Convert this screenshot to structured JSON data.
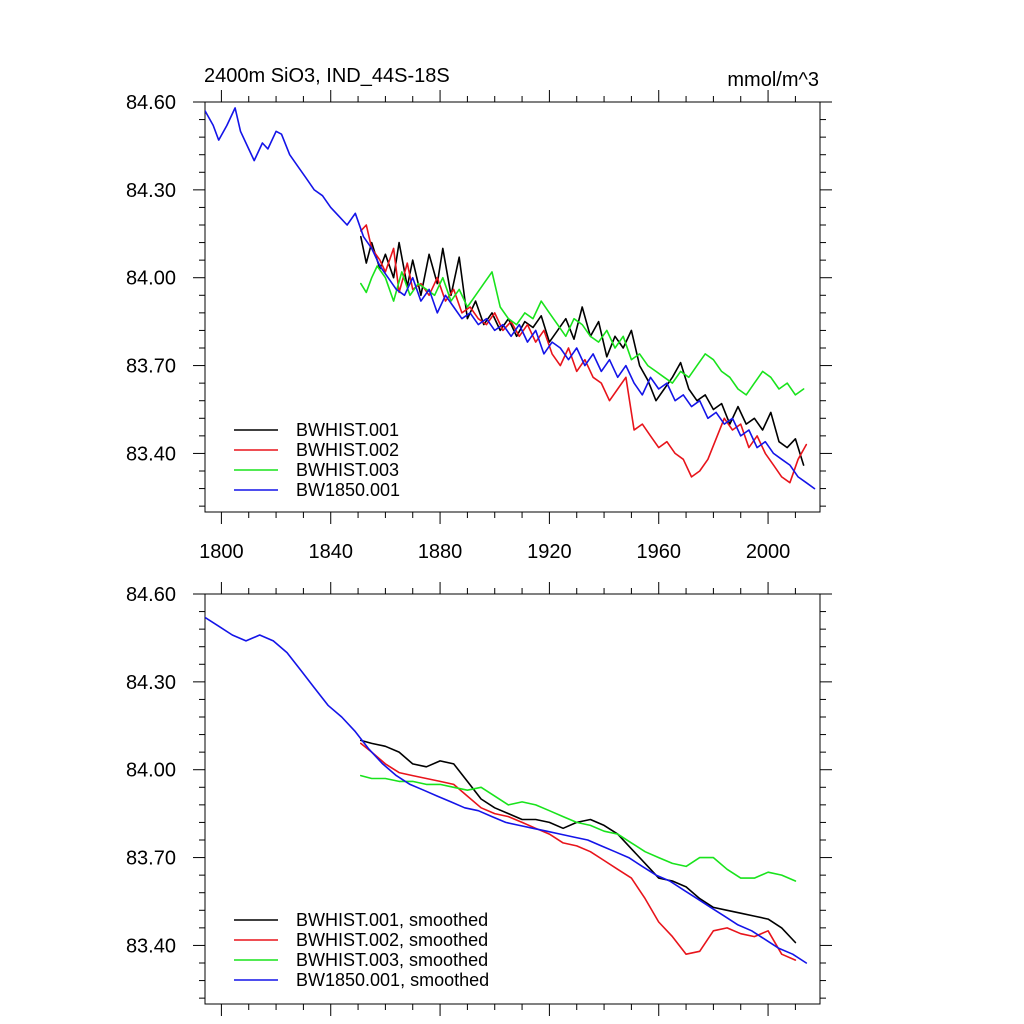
{
  "header": {
    "title": "2400m SiO3, IND_44S-18S",
    "units": "mmol/m^3"
  },
  "colors": {
    "BWHIST.001": "#000000",
    "BWHIST.002": "#e8141b",
    "BWHIST.003": "#19e31c",
    "BW1850.001": "#1414e8"
  },
  "chart_data": [
    {
      "type": "line",
      "title": "2400m SiO3, IND_44S-18S",
      "units": "mmol/m^3",
      "xlim": [
        1794,
        2019
      ],
      "ylim": [
        83.2,
        84.6
      ],
      "x_ticks": [
        1800,
        1840,
        1880,
        1920,
        1960,
        2000
      ],
      "x_tick_labels": [
        "1800",
        "1840",
        "1880",
        "1920",
        "1960",
        "2000"
      ],
      "y_ticks": [
        84.6,
        84.3,
        84.0,
        83.7,
        83.4
      ],
      "y_tick_labels": [
        "84.60",
        "84.30",
        "84.00",
        "83.70",
        "83.40"
      ],
      "legend_position": "bottom-left",
      "grid": false,
      "series": [
        {
          "name": "BWHIST.001",
          "x": [
            1851,
            1853,
            1855,
            1858,
            1860,
            1863,
            1865,
            1868,
            1870,
            1873,
            1876,
            1879,
            1881,
            1884,
            1887,
            1890,
            1893,
            1896,
            1899,
            1902,
            1905,
            1908,
            1911,
            1914,
            1917,
            1920,
            1923,
            1926,
            1929,
            1932,
            1935,
            1938,
            1941,
            1944,
            1947,
            1950,
            1953,
            1956,
            1959,
            1962,
            1965,
            1968,
            1971,
            1974,
            1977,
            1980,
            1983,
            1986,
            1989,
            1992,
            1995,
            1998,
            2001,
            2004,
            2007,
            2010,
            2013
          ],
          "y": [
            84.14,
            84.05,
            84.12,
            84.03,
            84.08,
            84.0,
            84.12,
            83.97,
            84.06,
            83.94,
            84.08,
            83.98,
            84.1,
            83.94,
            84.07,
            83.86,
            83.92,
            83.84,
            83.88,
            83.82,
            83.86,
            83.8,
            83.85,
            83.83,
            83.87,
            83.78,
            83.82,
            83.86,
            83.79,
            83.9,
            83.8,
            83.85,
            83.73,
            83.8,
            83.76,
            83.82,
            83.7,
            83.65,
            83.58,
            83.62,
            83.66,
            83.71,
            83.62,
            83.58,
            83.6,
            83.55,
            83.57,
            83.5,
            83.56,
            83.5,
            83.52,
            83.48,
            83.54,
            83.44,
            83.42,
            83.45,
            83.36
          ]
        },
        {
          "name": "BWHIST.002",
          "x": [
            1851,
            1853,
            1855,
            1858,
            1860,
            1863,
            1865,
            1868,
            1870,
            1873,
            1876,
            1879,
            1882,
            1885,
            1888,
            1891,
            1894,
            1897,
            1900,
            1903,
            1906,
            1909,
            1912,
            1915,
            1918,
            1921,
            1924,
            1927,
            1930,
            1933,
            1936,
            1939,
            1942,
            1945,
            1948,
            1951,
            1954,
            1957,
            1960,
            1963,
            1966,
            1969,
            1972,
            1975,
            1978,
            1981,
            1984,
            1987,
            1990,
            1993,
            1996,
            1999,
            2002,
            2005,
            2008,
            2011,
            2014
          ],
          "y": [
            84.16,
            84.18,
            84.1,
            84.06,
            84.02,
            84.1,
            83.95,
            84.05,
            83.96,
            83.98,
            83.94,
            84.0,
            83.92,
            83.96,
            83.88,
            83.9,
            83.86,
            83.84,
            83.88,
            83.82,
            83.85,
            83.8,
            83.84,
            83.78,
            83.82,
            83.74,
            83.7,
            83.76,
            83.68,
            83.72,
            83.66,
            83.64,
            83.58,
            83.62,
            83.66,
            83.48,
            83.5,
            83.46,
            83.42,
            83.44,
            83.4,
            83.38,
            83.32,
            83.34,
            83.38,
            83.45,
            83.52,
            83.48,
            83.5,
            83.42,
            83.46,
            83.4,
            83.36,
            83.32,
            83.3,
            83.38,
            83.43
          ]
        },
        {
          "name": "BWHIST.003",
          "x": [
            1851,
            1853,
            1855,
            1857,
            1860,
            1863,
            1866,
            1869,
            1872,
            1875,
            1878,
            1881,
            1884,
            1887,
            1890,
            1893,
            1896,
            1899,
            1902,
            1905,
            1908,
            1911,
            1914,
            1917,
            1920,
            1923,
            1926,
            1929,
            1932,
            1935,
            1938,
            1941,
            1944,
            1947,
            1950,
            1953,
            1956,
            1959,
            1962,
            1965,
            1968,
            1971,
            1974,
            1977,
            1980,
            1983,
            1986,
            1989,
            1992,
            1995,
            1998,
            2001,
            2004,
            2007,
            2010,
            2013
          ],
          "y": [
            83.98,
            83.95,
            84.0,
            84.04,
            84.0,
            83.92,
            84.02,
            83.94,
            83.98,
            83.96,
            83.94,
            84.0,
            83.92,
            83.96,
            83.9,
            83.94,
            83.98,
            84.02,
            83.9,
            83.86,
            83.84,
            83.88,
            83.86,
            83.92,
            83.88,
            83.84,
            83.8,
            83.86,
            83.84,
            83.8,
            83.78,
            83.82,
            83.76,
            83.8,
            83.72,
            83.74,
            83.7,
            83.68,
            83.66,
            83.64,
            83.68,
            83.66,
            83.7,
            83.74,
            83.72,
            83.68,
            83.66,
            83.62,
            83.6,
            83.64,
            83.68,
            83.66,
            83.62,
            83.64,
            83.6,
            83.62
          ]
        },
        {
          "name": "BW1850.001",
          "x": [
            1794,
            1797,
            1799,
            1802,
            1805,
            1807,
            1810,
            1812,
            1815,
            1817,
            1820,
            1822,
            1825,
            1828,
            1831,
            1834,
            1837,
            1840,
            1843,
            1846,
            1849,
            1852,
            1855,
            1858,
            1861,
            1864,
            1867,
            1870,
            1873,
            1876,
            1879,
            1882,
            1885,
            1888,
            1891,
            1894,
            1897,
            1900,
            1903,
            1906,
            1909,
            1912,
            1915,
            1918,
            1921,
            1924,
            1927,
            1930,
            1933,
            1936,
            1939,
            1942,
            1945,
            1948,
            1951,
            1954,
            1957,
            1960,
            1963,
            1966,
            1969,
            1972,
            1975,
            1978,
            1981,
            1984,
            1987,
            1990,
            1993,
            1996,
            1999,
            2002,
            2005,
            2008,
            2011,
            2014,
            2017
          ],
          "y": [
            84.57,
            84.52,
            84.47,
            84.52,
            84.58,
            84.5,
            84.44,
            84.4,
            84.46,
            84.44,
            84.5,
            84.49,
            84.42,
            84.38,
            84.34,
            84.3,
            84.28,
            84.24,
            84.21,
            84.18,
            84.22,
            84.14,
            84.1,
            84.04,
            84.0,
            83.96,
            83.94,
            84.0,
            83.92,
            83.96,
            83.88,
            83.94,
            83.9,
            83.86,
            83.88,
            83.84,
            83.86,
            83.82,
            83.84,
            83.8,
            83.84,
            83.78,
            83.82,
            83.74,
            83.78,
            83.76,
            83.72,
            83.76,
            83.7,
            83.74,
            83.68,
            83.72,
            83.66,
            83.7,
            83.64,
            83.6,
            83.66,
            83.62,
            83.64,
            83.58,
            83.6,
            83.56,
            83.58,
            83.52,
            83.54,
            83.5,
            83.52,
            83.46,
            83.48,
            83.42,
            83.44,
            83.4,
            83.38,
            83.36,
            83.32,
            83.3,
            83.28
          ]
        }
      ]
    },
    {
      "type": "line",
      "xlim": [
        1794,
        2019
      ],
      "ylim": [
        83.2,
        84.6
      ],
      "x_ticks": [
        1800,
        1840,
        1880,
        1920,
        1960,
        2000
      ],
      "y_ticks": [
        84.6,
        84.3,
        84.0,
        83.7,
        83.4
      ],
      "y_tick_labels": [
        "84.60",
        "84.30",
        "84.00",
        "83.70",
        "83.40"
      ],
      "legend_position": "bottom-left",
      "grid": false,
      "series": [
        {
          "name": "BWHIST.001, smoothed",
          "key": "BWHIST.001",
          "x": [
            1851,
            1855,
            1860,
            1865,
            1870,
            1875,
            1880,
            1885,
            1890,
            1895,
            1900,
            1905,
            1910,
            1915,
            1920,
            1925,
            1930,
            1935,
            1940,
            1945,
            1950,
            1955,
            1960,
            1965,
            1970,
            1975,
            1980,
            1985,
            1990,
            1995,
            2000,
            2005,
            2010
          ],
          "y": [
            84.1,
            84.09,
            84.08,
            84.06,
            84.02,
            84.01,
            84.03,
            84.02,
            83.96,
            83.9,
            83.87,
            83.85,
            83.83,
            83.83,
            83.82,
            83.8,
            83.82,
            83.83,
            83.81,
            83.78,
            83.73,
            83.68,
            83.63,
            83.62,
            83.6,
            83.56,
            83.53,
            83.52,
            83.51,
            83.5,
            83.49,
            83.46,
            83.41
          ]
        },
        {
          "name": "BWHIST.002, smoothed",
          "key": "BWHIST.002",
          "x": [
            1851,
            1855,
            1860,
            1865,
            1870,
            1875,
            1880,
            1885,
            1890,
            1895,
            1900,
            1905,
            1910,
            1915,
            1920,
            1925,
            1930,
            1935,
            1940,
            1945,
            1950,
            1955,
            1960,
            1965,
            1970,
            1975,
            1980,
            1985,
            1990,
            1995,
            2000,
            2005,
            2010
          ],
          "y": [
            84.09,
            84.06,
            84.02,
            83.99,
            83.98,
            83.97,
            83.96,
            83.95,
            83.91,
            83.87,
            83.85,
            83.84,
            83.82,
            83.8,
            83.78,
            83.75,
            83.74,
            83.72,
            83.69,
            83.66,
            83.63,
            83.56,
            83.48,
            83.43,
            83.37,
            83.38,
            83.45,
            83.46,
            83.44,
            83.43,
            83.45,
            83.37,
            83.35
          ]
        },
        {
          "name": "BWHIST.003, smoothed",
          "key": "BWHIST.003",
          "x": [
            1851,
            1855,
            1860,
            1865,
            1870,
            1875,
            1880,
            1885,
            1890,
            1895,
            1900,
            1905,
            1910,
            1915,
            1920,
            1925,
            1930,
            1935,
            1940,
            1945,
            1950,
            1955,
            1960,
            1965,
            1970,
            1975,
            1980,
            1985,
            1990,
            1995,
            2000,
            2005,
            2010
          ],
          "y": [
            83.98,
            83.97,
            83.97,
            83.96,
            83.96,
            83.95,
            83.95,
            83.94,
            83.93,
            83.94,
            83.91,
            83.88,
            83.89,
            83.88,
            83.86,
            83.84,
            83.82,
            83.81,
            83.79,
            83.78,
            83.75,
            83.72,
            83.7,
            83.68,
            83.67,
            83.7,
            83.7,
            83.66,
            83.63,
            83.63,
            83.65,
            83.64,
            83.62
          ]
        },
        {
          "name": "BW1850.001, smoothed",
          "key": "BW1850.001",
          "x": [
            1794,
            1799,
            1804,
            1809,
            1814,
            1819,
            1824,
            1829,
            1834,
            1839,
            1844,
            1849,
            1854,
            1859,
            1864,
            1869,
            1874,
            1879,
            1884,
            1889,
            1894,
            1899,
            1904,
            1909,
            1914,
            1919,
            1924,
            1929,
            1934,
            1939,
            1944,
            1949,
            1954,
            1959,
            1964,
            1969,
            1974,
            1979,
            1984,
            1989,
            1994,
            1999,
            2004,
            2009,
            2014
          ],
          "y": [
            84.52,
            84.49,
            84.46,
            84.44,
            84.46,
            84.44,
            84.4,
            84.34,
            84.28,
            84.22,
            84.18,
            84.13,
            84.07,
            84.02,
            83.98,
            83.95,
            83.93,
            83.91,
            83.89,
            83.87,
            83.86,
            83.84,
            83.82,
            83.81,
            83.8,
            83.79,
            83.78,
            83.77,
            83.76,
            83.74,
            83.72,
            83.7,
            83.67,
            83.64,
            83.62,
            83.59,
            83.56,
            83.53,
            83.5,
            83.47,
            83.45,
            83.42,
            83.39,
            83.37,
            83.34
          ]
        }
      ]
    }
  ]
}
